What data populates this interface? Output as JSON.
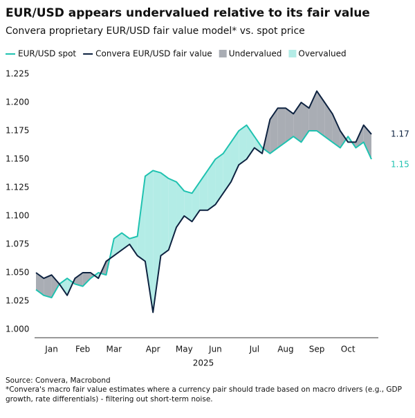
{
  "chart_data": {
    "type": "line",
    "title": "EUR/USD appears undervalued relative to its fair value",
    "subtitle": "Convera proprietary EUR/USD fair value model* vs. spot price",
    "x_label": "2025",
    "source": "Source: Convera, Macrobond",
    "footnote": "*Convera's macro fair value estimates where a currency pair should trade based on macro drivers (e.g., GDP growth, rate differentials) - filtering out short-term noise.",
    "categories": [
      null,
      null,
      "Jan",
      null,
      null,
      null,
      "Feb",
      null,
      null,
      null,
      "Mar",
      null,
      null,
      null,
      null,
      "Apr",
      null,
      null,
      null,
      "May",
      null,
      null,
      null,
      "Jun",
      null,
      null,
      null,
      null,
      "Jul",
      null,
      null,
      null,
      "Aug",
      null,
      null,
      null,
      "Sep",
      null,
      null,
      null,
      "Oct",
      null,
      null,
      null
    ],
    "series": [
      {
        "name": "EUR/USD spot",
        "color": "#1fc2b0",
        "end_label": "1.15",
        "values": [
          1.035,
          1.03,
          1.028,
          1.04,
          1.045,
          1.04,
          1.038,
          1.045,
          1.05,
          1.048,
          1.08,
          1.085,
          1.08,
          1.082,
          1.135,
          1.14,
          1.138,
          1.133,
          1.13,
          1.122,
          1.12,
          1.13,
          1.14,
          1.15,
          1.155,
          1.165,
          1.175,
          1.18,
          1.17,
          1.16,
          1.155,
          1.16,
          1.165,
          1.17,
          1.165,
          1.175,
          1.175,
          1.17,
          1.165,
          1.16,
          1.17,
          1.16,
          1.165,
          1.15
        ]
      },
      {
        "name": "Convera EUR/USD fair value",
        "color": "#0d2240",
        "end_label": "1.17",
        "values": [
          1.05,
          1.045,
          1.048,
          1.04,
          1.03,
          1.045,
          1.05,
          1.05,
          1.045,
          1.06,
          1.065,
          1.07,
          1.075,
          1.065,
          1.06,
          1.015,
          1.065,
          1.07,
          1.09,
          1.1,
          1.095,
          1.105,
          1.105,
          1.11,
          1.12,
          1.13,
          1.145,
          1.15,
          1.16,
          1.155,
          1.185,
          1.195,
          1.195,
          1.19,
          1.2,
          1.195,
          1.21,
          1.2,
          1.19,
          1.175,
          1.165,
          1.165,
          1.18,
          1.172
        ]
      }
    ],
    "fills": [
      {
        "name": "Undervalued",
        "color": "#a9adb4"
      },
      {
        "name": "Overvalued",
        "color": "#b3ece6"
      }
    ],
    "ylim": [
      1.0,
      1.225
    ],
    "yticks": [
      {
        "value": 1.0,
        "label": "1.000"
      },
      1.025,
      {
        "value": 1.05,
        "label": "1.050"
      },
      1.075,
      {
        "value": 1.1,
        "label": "1.100"
      },
      1.125,
      {
        "value": 1.15,
        "label": "1.150"
      },
      1.175,
      {
        "value": 1.2,
        "label": "1.200"
      },
      1.225
    ]
  }
}
